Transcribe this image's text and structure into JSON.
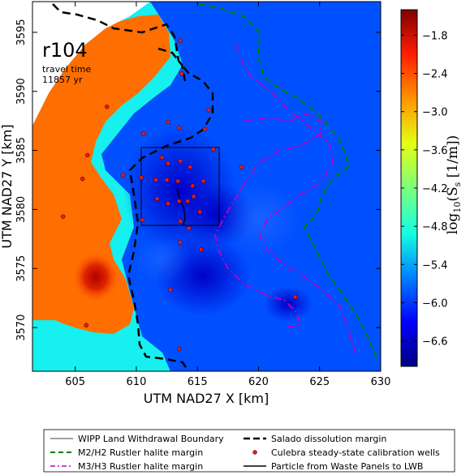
{
  "chart_data": {
    "type": "heatmap",
    "panel_label": "r104",
    "annotation_lines": [
      "travel time",
      "11857 yr"
    ],
    "xlabel": "UTM NAD27 X [km]",
    "ylabel": "UTM NAD27 Y [km]",
    "xlim": [
      601.5,
      630
    ],
    "ylim": [
      3566.3,
      3597.6
    ],
    "xticks": [
      "605",
      "610",
      "615",
      "620",
      "625",
      "630"
    ],
    "yticks": [
      "3570",
      "3575",
      "3580",
      "3585",
      "3590",
      "3595"
    ],
    "colorbar": {
      "label_base": "log",
      "label_sub": "10",
      "label_rest": "(S",
      "label_sub2": "s",
      "label_end": " [1/m])",
      "range": [
        -7.0,
        -1.4
      ],
      "ticks": [
        "−1.8",
        "−2.4",
        "−3.0",
        "−3.6",
        "−4.2",
        "−4.8",
        "−5.4",
        "−6.0",
        "−6.6"
      ],
      "colors": [
        "#00007f",
        "#0000ff",
        "#0080ff",
        "#15ffe1",
        "#7dff7a",
        "#e4ff13",
        "#ff9400",
        "#ff1e00",
        "#7f0000"
      ]
    },
    "lwb_box": {
      "x": [
        610.6,
        616.8
      ],
      "y": [
        3578.9,
        3585.1
      ]
    },
    "wells": [
      [
        613.6,
        3594.3
      ],
      [
        613.7,
        3591.5
      ],
      [
        615.9,
        3588.4
      ],
      [
        610.6,
        3586.4
      ],
      [
        612.6,
        3587.4
      ],
      [
        613.5,
        3586.9
      ],
      [
        615.6,
        3586.8
      ],
      [
        607.6,
        3588.7
      ],
      [
        606.0,
        3584.6
      ],
      [
        608.9,
        3582.9
      ],
      [
        610.4,
        3582.7
      ],
      [
        612.1,
        3584.4
      ],
      [
        612.6,
        3583.9
      ],
      [
        613.6,
        3584.1
      ],
      [
        614.4,
        3583.6
      ],
      [
        611.6,
        3582.5
      ],
      [
        612.5,
        3582.5
      ],
      [
        613.4,
        3582.4
      ],
      [
        614.6,
        3582.0
      ],
      [
        615.5,
        3582.4
      ],
      [
        616.3,
        3585.1
      ],
      [
        611.7,
        3580.9
      ],
      [
        612.6,
        3580.5
      ],
      [
        613.5,
        3580.7
      ],
      [
        614.2,
        3580.7
      ],
      [
        614.7,
        3581.1
      ],
      [
        615.2,
        3579.8
      ],
      [
        613.6,
        3579.0
      ],
      [
        614.3,
        3578.4
      ],
      [
        613.6,
        3577.2
      ],
      [
        615.3,
        3576.6
      ],
      [
        618.6,
        3583.6
      ],
      [
        610.5,
        3579.1
      ],
      [
        605.6,
        3582.6
      ],
      [
        612.8,
        3573.2
      ],
      [
        613.5,
        3568.2
      ],
      [
        605.9,
        3570.2
      ],
      [
        623.0,
        3572.6
      ],
      [
        604.0,
        3579.4
      ]
    ]
  },
  "legend": [
    {
      "label": "WIPP Land Withdrawal Boundary",
      "style": "solid-thin",
      "color": "#000000"
    },
    {
      "label": "Salado dissolution margin",
      "style": "dash-thick",
      "color": "#000000"
    },
    {
      "label": "M2/H2 Rustler halite margin",
      "style": "dash",
      "color": "#008000"
    },
    {
      "label": "Culebra steady-state calibration wells",
      "style": "dot",
      "color": "#d42020"
    },
    {
      "label": "M3/H3 Rustler halite margin",
      "style": "dashdot",
      "color": "#c000c0"
    },
    {
      "label": "Particle from Waste Panels to LWB",
      "style": "solid",
      "color": "#000000"
    }
  ]
}
